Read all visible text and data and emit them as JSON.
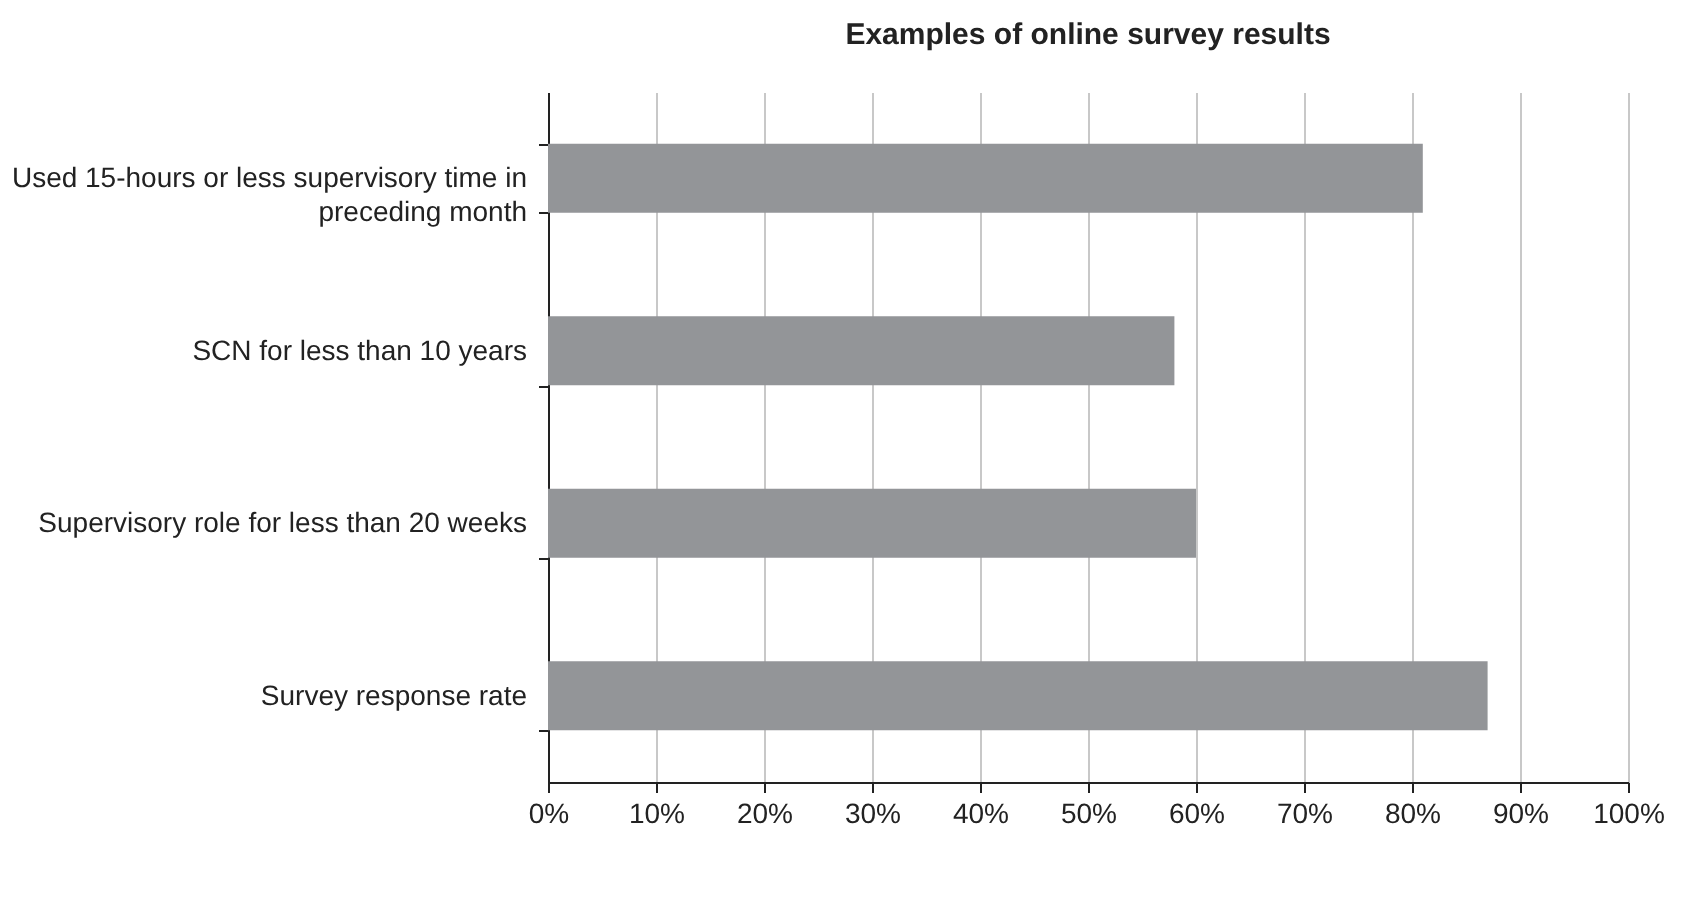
{
  "chart_data": {
    "type": "bar",
    "orientation": "horizontal",
    "title": "Examples of online survey results",
    "categories": [
      "Used 15-hours or less supervisory time in preceding month",
      "SCN for less than 10 years",
      "Supervisory role for less than 20 weeks",
      "Survey response rate"
    ],
    "values": [
      81,
      58,
      60,
      87
    ],
    "color": "#939598",
    "xlim": [
      0,
      100
    ],
    "xticks": [
      {
        "value": 0,
        "label": "0%"
      },
      {
        "value": 10,
        "label": "10%"
      },
      {
        "value": 20,
        "label": "20%"
      },
      {
        "value": 30,
        "label": "30%"
      },
      {
        "value": 40,
        "label": "40%"
      },
      {
        "value": 50,
        "label": "50%"
      },
      {
        "value": 60,
        "label": "60%"
      },
      {
        "value": 70,
        "label": "70%"
      },
      {
        "value": 80,
        "label": "80%"
      },
      {
        "value": 90,
        "label": "90%"
      },
      {
        "value": 100,
        "label": "100%"
      }
    ],
    "grid": "x"
  }
}
